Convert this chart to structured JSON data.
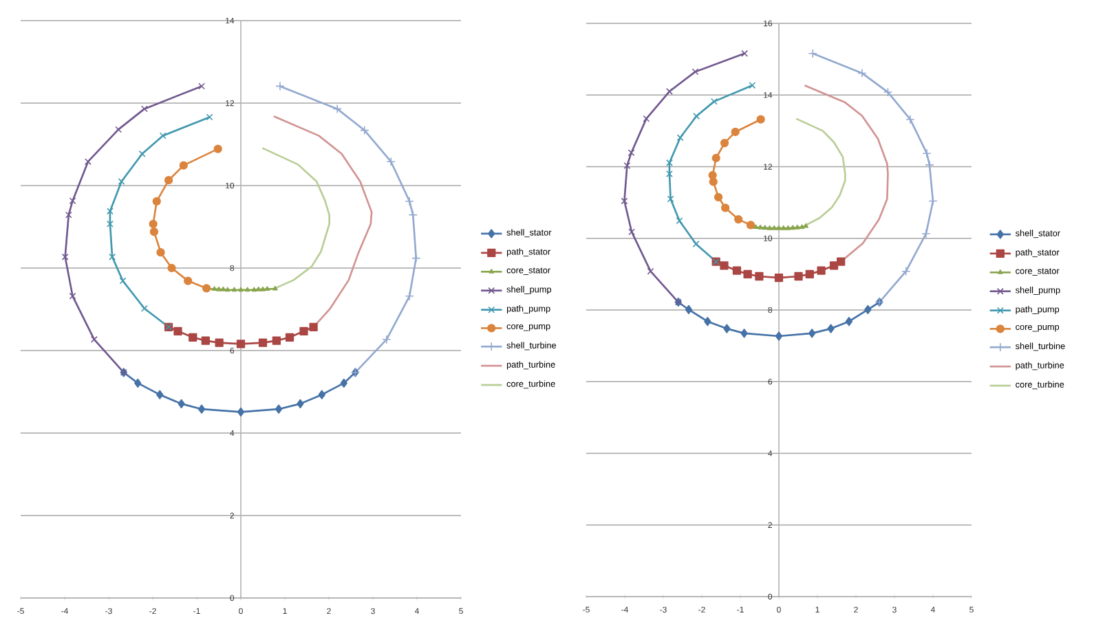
{
  "chart_data": [
    {
      "type": "line",
      "xlim": [
        -5,
        5
      ],
      "ylim": [
        0,
        14
      ],
      "xticks": [
        -5,
        -4,
        -3,
        -2,
        -1,
        0,
        1,
        2,
        3,
        4,
        5
      ],
      "yticks": [
        0,
        2,
        4,
        6,
        8,
        10,
        12,
        14
      ],
      "grid": "y",
      "legend": "right",
      "series": [
        {
          "name": "shell_stator",
          "color": "#4572a7",
          "marker": "diamond",
          "x": [
            -2.66,
            -2.34,
            -1.84,
            -1.35,
            -0.89,
            0,
            0.86,
            1.35,
            1.84,
            2.34,
            2.6
          ],
          "values": [
            5.47,
            5.21,
            4.93,
            4.71,
            4.58,
            4.51,
            4.58,
            4.71,
            4.93,
            5.21,
            5.47
          ]
        },
        {
          "name": "path_stator",
          "color": "#aa4643",
          "marker": "square",
          "x": [
            -1.64,
            -1.43,
            -1.09,
            -0.8,
            -0.49,
            0,
            0.5,
            0.81,
            1.11,
            1.43,
            1.65
          ],
          "values": [
            6.57,
            6.47,
            6.32,
            6.24,
            6.19,
            6.16,
            6.19,
            6.24,
            6.32,
            6.47,
            6.57
          ]
        },
        {
          "name": "core_stator",
          "color": "#89a54e",
          "marker": "triangle",
          "x": [
            -0.78,
            -0.6,
            -0.5,
            -0.4,
            -0.3,
            -0.15,
            0,
            0.15,
            0.3,
            0.4,
            0.5,
            0.6,
            0.78
          ],
          "values": [
            7.5,
            7.49,
            7.48,
            7.48,
            7.47,
            7.47,
            7.47,
            7.47,
            7.47,
            7.48,
            7.48,
            7.49,
            7.5
          ]
        },
        {
          "name": "shell_pump",
          "color": "#71588f",
          "marker": "x",
          "x": [
            -2.66,
            -3.33,
            -3.82,
            -3.99,
            -3.91,
            -3.82,
            -3.47,
            -2.78,
            -2.19,
            -0.89
          ],
          "values": [
            5.47,
            6.27,
            7.32,
            8.27,
            9.29,
            9.63,
            10.58,
            11.36,
            11.86,
            12.41
          ]
        },
        {
          "name": "path_pump",
          "color": "#4198af",
          "marker": "x",
          "x": [
            -1.64,
            -2.19,
            -2.68,
            -2.92,
            -2.97,
            -2.97,
            -2.71,
            -2.24,
            -1.77,
            -0.71
          ],
          "values": [
            6.57,
            7.02,
            7.69,
            8.27,
            9.07,
            9.38,
            10.1,
            10.77,
            11.21,
            11.66
          ]
        },
        {
          "name": "core_pump",
          "color": "#db843d",
          "marker": "circle",
          "x": [
            -0.78,
            -1.2,
            -1.57,
            -1.82,
            -1.97,
            -1.99,
            -1.91,
            -1.64,
            -1.3,
            -0.52
          ],
          "values": [
            7.51,
            7.69,
            8.0,
            8.38,
            8.88,
            9.07,
            9.62,
            10.13,
            10.49,
            10.89
          ]
        },
        {
          "name": "shell_turbine",
          "color": "#93a9cf",
          "marker": "plus",
          "x": [
            2.6,
            3.31,
            3.83,
            3.98,
            3.91,
            3.83,
            3.41,
            2.81,
            2.19,
            0.89
          ],
          "values": [
            5.47,
            6.27,
            7.32,
            8.24,
            9.29,
            9.62,
            10.58,
            11.34,
            11.86,
            12.41
          ]
        },
        {
          "name": "path_turbine",
          "color": "#d19392",
          "marker": "none",
          "x": [
            1.65,
            2.03,
            2.45,
            2.66,
            2.95,
            2.97,
            2.71,
            2.29,
            1.77,
            0.75
          ],
          "values": [
            6.57,
            7.02,
            7.71,
            8.34,
            9.07,
            9.36,
            10.1,
            10.77,
            11.21,
            11.68
          ]
        },
        {
          "name": "core_turbine",
          "color": "#b9cd96",
          "marker": "none",
          "x": [
            0.78,
            1.2,
            1.61,
            1.82,
            2.01,
            2.01,
            1.91,
            1.72,
            1.3,
            0.49
          ],
          "values": [
            7.51,
            7.71,
            8.04,
            8.4,
            9.07,
            9.29,
            9.64,
            10.1,
            10.51,
            10.91
          ]
        }
      ]
    },
    {
      "type": "line",
      "xlim": [
        -5,
        5
      ],
      "ylim": [
        0,
        16
      ],
      "xticks": [
        -5,
        -4,
        -3,
        -2,
        -1,
        0,
        1,
        2,
        3,
        4,
        5
      ],
      "yticks": [
        0,
        2,
        4,
        6,
        8,
        10,
        12,
        14,
        16
      ],
      "grid": "y",
      "legend": "right",
      "series": [
        {
          "name": "shell_stator",
          "color": "#4572a7",
          "marker": "diamond",
          "x": [
            -2.61,
            -2.34,
            -1.85,
            -1.35,
            -0.9,
            0,
            0.86,
            1.35,
            1.82,
            2.31,
            2.61
          ],
          "values": [
            8.22,
            8.01,
            7.68,
            7.48,
            7.35,
            7.27,
            7.35,
            7.48,
            7.68,
            8.01,
            8.22
          ]
        },
        {
          "name": "path_stator",
          "color": "#aa4643",
          "marker": "square",
          "x": [
            -1.63,
            -1.42,
            -1.09,
            -0.81,
            -0.51,
            0,
            0.51,
            0.8,
            1.1,
            1.43,
            1.61
          ],
          "values": [
            9.35,
            9.24,
            9.1,
            9.0,
            8.94,
            8.9,
            8.94,
            9.0,
            9.1,
            9.24,
            9.35
          ]
        },
        {
          "name": "core_stator",
          "color": "#89a54e",
          "marker": "triangle",
          "x": [
            -0.76,
            -0.6,
            -0.48,
            -0.36,
            -0.24,
            -0.12,
            0,
            0.12,
            0.24,
            0.36,
            0.48,
            0.6,
            0.7
          ],
          "values": [
            10.34,
            10.31,
            10.3,
            10.29,
            10.28,
            10.28,
            10.28,
            10.28,
            10.28,
            10.29,
            10.3,
            10.31,
            10.34
          ]
        },
        {
          "name": "shell_pump",
          "color": "#71588f",
          "marker": "x",
          "x": [
            -2.61,
            -3.33,
            -3.82,
            -4.01,
            -3.94,
            -3.83,
            -3.44,
            -2.84,
            -2.17,
            -0.89
          ],
          "values": [
            8.22,
            9.08,
            10.18,
            11.04,
            12.03,
            12.39,
            13.34,
            14.1,
            14.65,
            15.16
          ]
        },
        {
          "name": "path_pump",
          "color": "#4198af",
          "marker": "x",
          "x": [
            -1.63,
            -2.15,
            -2.58,
            -2.81,
            -2.84,
            -2.84,
            -2.56,
            -2.14,
            -1.68,
            -0.69
          ],
          "values": [
            9.35,
            9.84,
            10.49,
            11.1,
            11.8,
            12.11,
            12.81,
            13.41,
            13.82,
            14.27
          ]
        },
        {
          "name": "core_pump",
          "color": "#db843d",
          "marker": "circle",
          "x": [
            -0.73,
            -1.05,
            -1.39,
            -1.57,
            -1.7,
            -1.72,
            -1.63,
            -1.41,
            -1.13,
            -0.47
          ],
          "values": [
            10.37,
            10.53,
            10.85,
            11.15,
            11.58,
            11.76,
            12.24,
            12.66,
            12.97,
            13.32
          ]
        },
        {
          "name": "shell_turbine",
          "color": "#93a9cf",
          "marker": "plus",
          "x": [
            2.61,
            3.3,
            3.82,
            4.0,
            3.91,
            3.84,
            3.41,
            2.83,
            2.16,
            0.88
          ],
          "values": [
            8.22,
            9.08,
            10.13,
            11.04,
            12.05,
            12.37,
            13.32,
            14.08,
            14.61,
            15.16
          ]
        },
        {
          "name": "path_turbine",
          "color": "#d19392",
          "marker": "none",
          "x": [
            1.61,
            2.18,
            2.6,
            2.81,
            2.83,
            2.81,
            2.57,
            2.16,
            1.71,
            0.67
          ],
          "values": [
            9.35,
            9.86,
            10.53,
            11.1,
            11.8,
            12.08,
            12.78,
            13.42,
            13.8,
            14.27
          ]
        },
        {
          "name": "core_turbine",
          "color": "#b9cd96",
          "marker": "none",
          "x": [
            0.7,
            1.06,
            1.38,
            1.58,
            1.72,
            1.72,
            1.66,
            1.43,
            1.14,
            0.45
          ],
          "values": [
            10.37,
            10.57,
            10.87,
            11.2,
            11.61,
            11.8,
            12.27,
            12.68,
            13.0,
            13.34
          ]
        }
      ]
    }
  ]
}
